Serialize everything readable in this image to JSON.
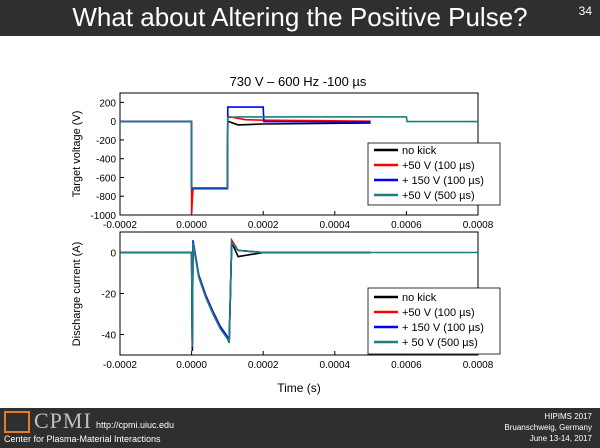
{
  "slide": {
    "title": "What about Altering the Positive Pulse?",
    "page_number": "34"
  },
  "footer": {
    "logo_text": "CPMI",
    "url": "http://cpmi.uiuc.edu",
    "org": "Center for Plasma-Material Interactions",
    "conference": "HIPIMS 2017",
    "location": "Bruanschweig, Germany",
    "dates": "June 13-14, 2017"
  },
  "chart_data": [
    {
      "type": "line",
      "title": "730 V – 600 Hz -100 µs",
      "ylabel": "Target voltage (V)",
      "xlabel": "",
      "xlim": [
        -0.0002,
        0.0008
      ],
      "ylim": [
        -1000,
        300
      ],
      "xticks": [
        "-0.0002",
        "0.0000",
        "0.0002",
        "0.0004",
        "0.0006",
        "0.0008"
      ],
      "yticks": [
        "200",
        "0",
        "-200",
        "-400",
        "-600",
        "-800",
        "-1000"
      ],
      "legend_position": "right",
      "series": [
        {
          "name": "no kick",
          "color": "#000000",
          "x": [
            -0.0002,
            0.0,
            0.0,
            3e-06,
            0.0001,
            0.000101,
            0.00013,
            0.0002,
            0.0005
          ],
          "y": [
            -5,
            -5,
            -700,
            -710,
            -710,
            0,
            -40,
            -30,
            -20
          ]
        },
        {
          "name": "+50 V  (100 µs)",
          "color": "#ff0000",
          "x": [
            -0.0002,
            0.0,
            0.0,
            4e-06,
            0.0001,
            0.000101,
            0.00015,
            0.0002,
            0.0005
          ],
          "y": [
            -5,
            -5,
            -990,
            -710,
            -710,
            50,
            15,
            10,
            0
          ]
        },
        {
          "name": "+ 150 V (100 µs)",
          "color": "#0000ff",
          "x": [
            -0.0002,
            0.0,
            0.0,
            0.0001,
            0.000101,
            0.0002,
            0.000202,
            0.0005
          ],
          "y": [
            -5,
            -5,
            -720,
            -720,
            150,
            150,
            -5,
            -10
          ]
        },
        {
          "name": "+50 V  (500 µs)",
          "color": "#1a7f7f",
          "x": [
            -0.0002,
            0.0,
            0.0,
            0.0001,
            0.000101,
            0.00013,
            0.0006,
            0.000602,
            0.0008
          ],
          "y": [
            -5,
            -5,
            -710,
            -710,
            40,
            45,
            45,
            -5,
            -5
          ]
        }
      ]
    },
    {
      "type": "line",
      "title": "",
      "ylabel": "Discharge current (A)",
      "xlabel": "Time (s)",
      "xlim": [
        -0.0002,
        0.0008
      ],
      "ylim": [
        -50,
        10
      ],
      "xticks": [
        "-0.0002",
        "0.0000",
        "0.0002",
        "0.0004",
        "0.0006",
        "0.0008"
      ],
      "yticks": [
        "0",
        "-20",
        "-40"
      ],
      "legend_position": "bottom-right",
      "series": [
        {
          "name": "no kick",
          "color": "#000000",
          "x": [
            -0.0002,
            0.0,
            2e-06,
            4e-06,
            2e-05,
            4e-05,
            6e-05,
            8e-05,
            0.0001,
            0.000105,
            0.000112,
            0.00013,
            0.0002,
            0.0005
          ],
          "y": [
            0,
            0,
            -48,
            5,
            -12,
            -22,
            -30,
            -37,
            -42,
            -44,
            5,
            -2,
            0,
            0
          ]
        },
        {
          "name": "+50 V (100 µs)",
          "color": "#ff0000",
          "x": [
            -0.0002,
            0.0,
            2e-06,
            4e-06,
            2e-05,
            4e-05,
            6e-05,
            8e-05,
            0.0001,
            0.000105,
            0.000112,
            0.00013,
            0.0002,
            0.0005
          ],
          "y": [
            0,
            0,
            -46,
            4,
            -11,
            -21,
            -29,
            -36,
            -41,
            -43,
            6,
            1,
            0,
            0
          ]
        },
        {
          "name": "+ 150 V (100 µs)",
          "color": "#0000ff",
          "x": [
            -0.0002,
            0.0,
            2e-06,
            4e-06,
            2e-05,
            4e-05,
            6e-05,
            8e-05,
            0.0001,
            0.000105,
            0.000112,
            0.00013,
            0.0002,
            0.0005
          ],
          "y": [
            0,
            0,
            -47,
            6,
            -11,
            -21,
            -29,
            -36,
            -41,
            -43,
            5,
            1,
            0,
            0
          ]
        },
        {
          "name": "+ 50 V (500 µs)",
          "color": "#1a7f7f",
          "x": [
            -0.0002,
            0.0,
            2e-06,
            4e-06,
            2e-05,
            4e-05,
            6e-05,
            8e-05,
            0.0001,
            0.000105,
            0.000112,
            0.00013,
            0.0002,
            0.0008
          ],
          "y": [
            0,
            0,
            -46,
            5,
            -12,
            -22,
            -30,
            -37,
            -42,
            -44,
            5,
            1,
            0,
            0
          ]
        }
      ]
    }
  ]
}
